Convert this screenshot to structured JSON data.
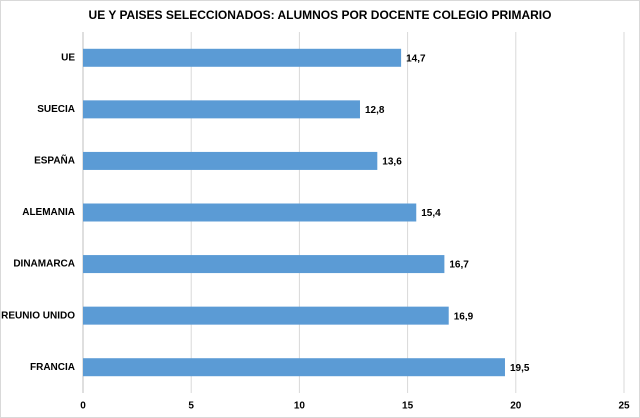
{
  "chart_data": {
    "type": "bar",
    "orientation": "horizontal",
    "title": "UE Y PAISES SELECCIONADOS: ALUMNOS POR DOCENTE COLEGIO PRIMARIO",
    "categories": [
      "UE",
      "SUECIA",
      "ESPAÑA",
      "ALEMANIA",
      "DINAMARCA",
      "REUNIO UNIDO",
      "FRANCIA"
    ],
    "values": [
      14.7,
      12.8,
      13.6,
      15.4,
      16.7,
      16.9,
      19.5
    ],
    "value_labels": [
      "14,7",
      "12,8",
      "13,6",
      "15,4",
      "16,7",
      "16,9",
      "19,5"
    ],
    "color": "#5b9bd5",
    "xlim": [
      0,
      25
    ],
    "xticks": [
      0,
      5,
      10,
      15,
      20,
      25
    ],
    "grid": true
  }
}
